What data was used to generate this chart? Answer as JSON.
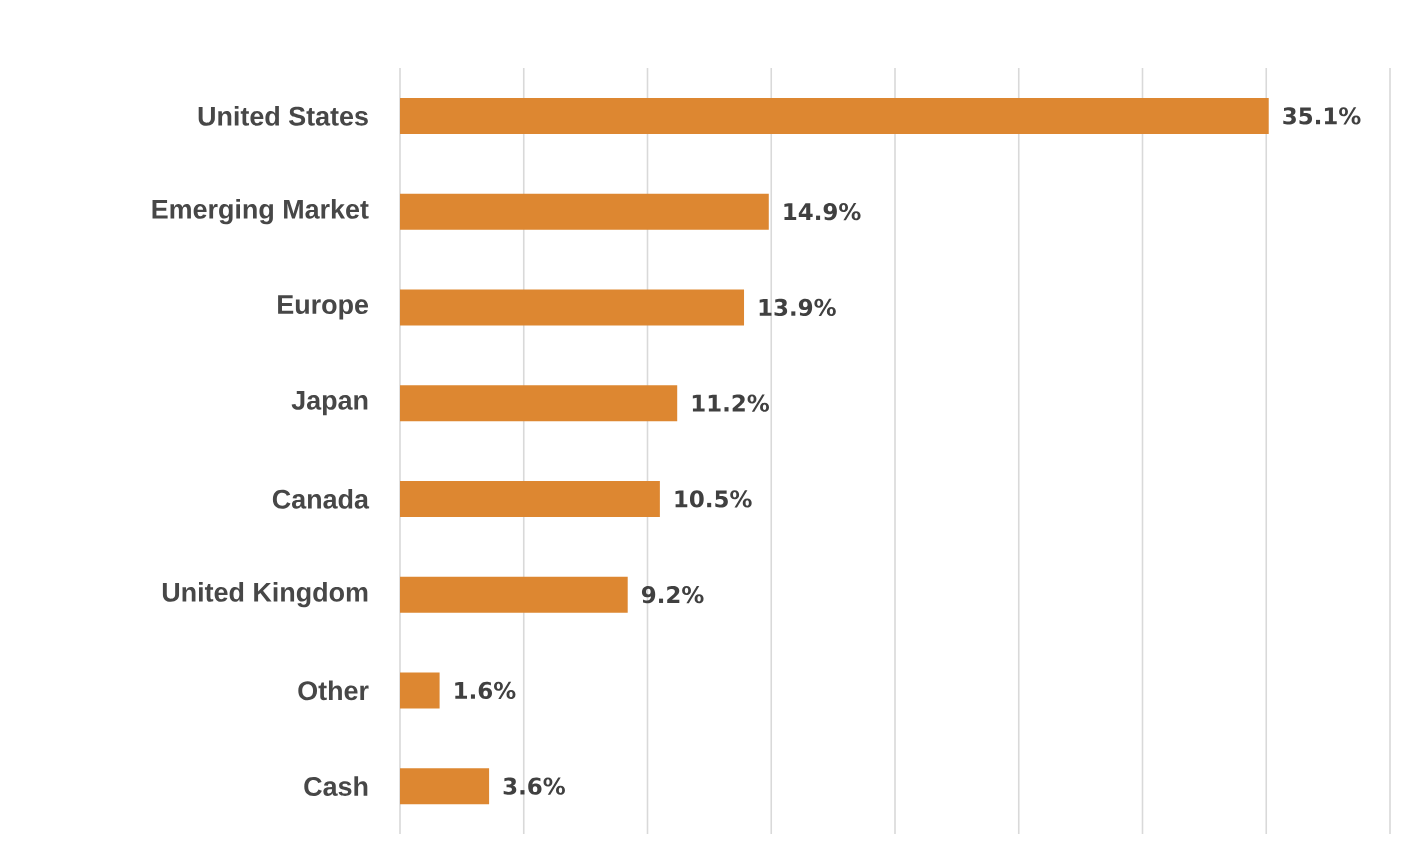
{
  "chart_data": {
    "type": "bar",
    "orientation": "horizontal",
    "categories": [
      "United States",
      "Emerging Market",
      "Europe",
      "Japan",
      "Canada",
      "United Kingdom",
      "Other",
      "Cash"
    ],
    "values": [
      35.1,
      14.9,
      13.9,
      11.2,
      10.5,
      9.2,
      1.6,
      3.6
    ],
    "value_labels": [
      "35.1%",
      "14.9%",
      "13.9%",
      "11.2%",
      "10.5%",
      "9.2%",
      "1.6%",
      "3.6%"
    ],
    "color": "#dd8731",
    "xlim": [
      0,
      40
    ],
    "xticks": [
      {
        "value": 0,
        "label": null
      },
      {
        "value": 5,
        "label": null
      },
      {
        "value": 10,
        "label": null
      },
      {
        "value": 15,
        "label": null
      },
      {
        "value": 20,
        "label": null
      },
      {
        "value": 25,
        "label": null
      },
      {
        "value": 30,
        "label": null
      },
      {
        "value": 35,
        "label": null
      },
      {
        "value": 40,
        "label": null
      }
    ],
    "grid": "x",
    "tick_labels": "y"
  }
}
